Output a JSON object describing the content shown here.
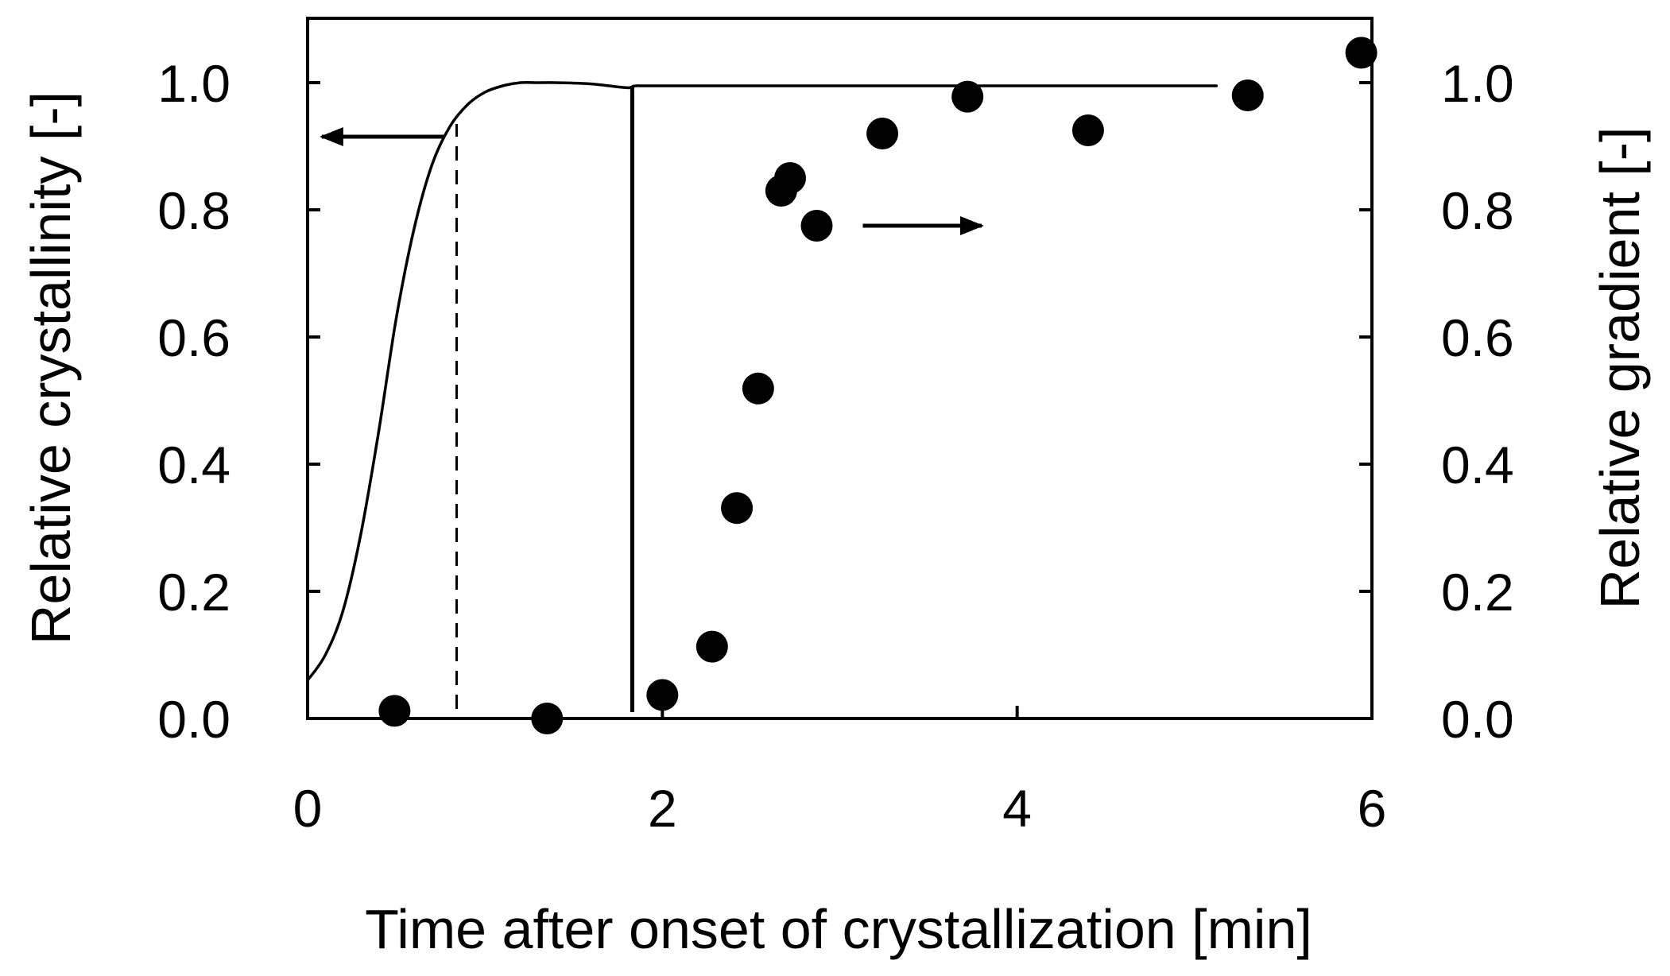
{
  "chart_data": {
    "type": "line",
    "title": "",
    "xlabel": "Time after onset of crystallization [min]",
    "ylabel_left": "Relative crystallinity [-]",
    "ylabel_right": "Relative gradient [-]",
    "xlim": [
      0,
      6
    ],
    "ylim_left": [
      0,
      1.0
    ],
    "ylim_right": [
      0,
      1.0
    ],
    "x_ticks": [
      "0",
      "2",
      "4",
      "6"
    ],
    "x_tick_values": [
      0,
      2,
      4,
      6
    ],
    "y_ticks": [
      "0.0",
      "0.2",
      "0.4",
      "0.6",
      "0.8",
      "1.0"
    ],
    "y_tick_values": [
      0,
      0.2,
      0.4,
      0.6,
      0.8,
      1.0
    ],
    "grid": false,
    "series": [
      {
        "axis": "left",
        "style": "solid-line",
        "x": [
          0,
          0.1,
          0.2,
          0.3,
          0.4,
          0.5,
          0.6,
          0.7,
          0.8,
          0.9,
          1.0,
          1.1,
          1.2,
          1.3,
          1.4,
          1.6,
          1.8,
          1.85,
          2.0,
          3.0,
          4.0,
          5.0,
          5.12
        ],
        "y": [
          0.06,
          0.1,
          0.17,
          0.29,
          0.45,
          0.63,
          0.77,
          0.87,
          0.93,
          0.965,
          0.985,
          0.995,
          1.0,
          1.0,
          1.0,
          0.998,
          0.992,
          0.995,
          0.995,
          0.995,
          0.995,
          0.995,
          0.995
        ]
      },
      {
        "axis": "right",
        "style": "filled-circles",
        "x": [
          0.49,
          1.35,
          2.0,
          2.28,
          2.42,
          2.54,
          2.67,
          2.72,
          2.87,
          3.24,
          3.72,
          4.4,
          5.3,
          5.94
        ],
        "y": [
          0.012,
          0.0,
          0.037,
          0.113,
          0.331,
          0.519,
          0.83,
          0.85,
          0.775,
          0.92,
          0.978,
          0.925,
          0.98,
          1.047
        ]
      }
    ],
    "reference_lines": [
      {
        "style": "dashed",
        "x": 0.84,
        "y_range": [
          0.015,
          0.935
        ]
      },
      {
        "style": "solid",
        "x": 1.83,
        "y_range": [
          0.01,
          0.995
        ]
      }
    ],
    "annotations": [
      {
        "type": "arrow",
        "direction": "left",
        "points_to": "left-axis",
        "x_from": 0.77,
        "x_to": 0.08,
        "y": 0.915
      },
      {
        "type": "arrow",
        "direction": "right",
        "points_to": "right-axis",
        "x_from": 3.13,
        "x_to": 3.8,
        "y": 0.775
      }
    ]
  }
}
